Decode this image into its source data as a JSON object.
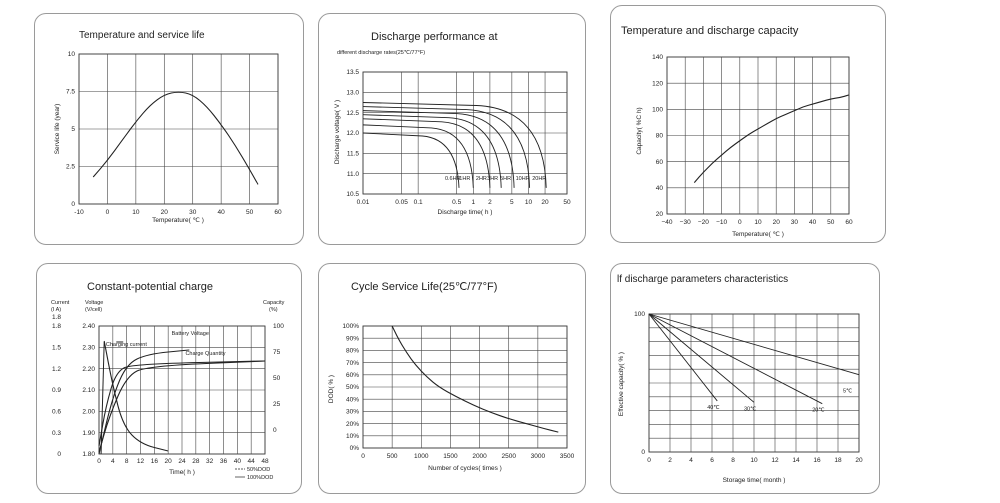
{
  "chart_data": [
    {
      "id": "p1",
      "type": "line",
      "title": "Temperature and service life",
      "xlabel": "Temperature( ℃ )",
      "ylabel": "Service life (year)",
      "xlim": [
        -10,
        60
      ],
      "ylim": [
        0,
        10
      ],
      "xticks": [
        -10,
        0,
        10,
        20,
        30,
        40,
        50,
        60
      ],
      "yticks": [
        0,
        2.5,
        5,
        7.5,
        10
      ],
      "xtick_labels": [
        "-10",
        "0",
        "10",
        "20",
        "30",
        "40",
        "50",
        "60"
      ],
      "ytick_labels": [
        "0",
        "2.5",
        "5",
        "7.5",
        "10"
      ],
      "grid": true,
      "series": [
        {
          "x": [
            -5,
            0,
            5,
            10,
            15,
            20,
            25,
            30,
            35,
            40,
            45,
            50,
            53
          ],
          "y": [
            1.8,
            2.9,
            4.2,
            5.5,
            6.6,
            7.3,
            7.5,
            7.3,
            6.5,
            5.3,
            3.9,
            2.3,
            1.3
          ]
        }
      ]
    },
    {
      "id": "p2",
      "type": "line",
      "title": "Discharge performance at",
      "subtitle": "different discharge rates(25℃/77°F)",
      "xlabel": "Discharge time( h )",
      "ylabel": "Discharge voltage( V )",
      "xscale": "log",
      "xlim": [
        0.01,
        50
      ],
      "ylim": [
        10.5,
        13.5
      ],
      "xticks": [
        0.01,
        0.05,
        0.1,
        0.5,
        1,
        2,
        5,
        10,
        20,
        50
      ],
      "yticks": [
        10.5,
        11.0,
        11.5,
        12.0,
        12.5,
        13.0,
        13.5
      ],
      "xtick_labels": [
        "0.01",
        "0.05",
        "0.1",
        "0.5",
        "1",
        "2",
        "5",
        "10",
        "20",
        "50"
      ],
      "ytick_labels": [
        "10.5",
        "11.0",
        "11.5",
        "12.0",
        "12.5",
        "13.0",
        "13.5"
      ],
      "grid": true,
      "series": [
        {
          "name": "0.6HR",
          "start": 12.0,
          "end_t": 0.55,
          "label": "0.6HR"
        },
        {
          "name": "1HR",
          "start": 12.2,
          "end_t": 1.0,
          "label": "1HR"
        },
        {
          "name": "2HR",
          "start": 12.35,
          "end_t": 2.0,
          "label": "2HR"
        },
        {
          "name": "3HR",
          "start": 12.45,
          "end_t": 3.2,
          "label": "3HR"
        },
        {
          "name": "5HR",
          "start": 12.55,
          "end_t": 5.5,
          "label": "5HR"
        },
        {
          "name": "10HR",
          "start": 12.65,
          "end_t": 10.5,
          "label": "10HR"
        },
        {
          "name": "20HR",
          "start": 12.75,
          "end_t": 21.0,
          "label": "20HR"
        }
      ]
    },
    {
      "id": "p3",
      "type": "line",
      "title": "Temperature and discharge capacity",
      "xlabel": "Temperature( ℃ )",
      "ylabel": "Capacity( %C  h)",
      "xlim": [
        -40,
        60
      ],
      "ylim": [
        20,
        140
      ],
      "xticks": [
        -40,
        -30,
        -20,
        -10,
        0,
        10,
        20,
        30,
        40,
        50,
        60
      ],
      "yticks": [
        20,
        40,
        60,
        80,
        100,
        120,
        140
      ],
      "xtick_labels": [
        "−40",
        "−30",
        "−20",
        "−10",
        "0",
        "10",
        "20",
        "30",
        "40",
        "50",
        "60"
      ],
      "ytick_labels": [
        "20",
        "40",
        "60",
        "80",
        "100",
        "120",
        "140"
      ],
      "grid": true,
      "series": [
        {
          "x": [
            -25,
            -20,
            -15,
            -10,
            -5,
            0,
            5,
            10,
            15,
            20,
            25,
            30,
            35,
            40,
            45,
            50,
            55,
            60
          ],
          "y": [
            44,
            52,
            59,
            65,
            71,
            76,
            81,
            85,
            89,
            93,
            96,
            99,
            102,
            104,
            106,
            108,
            109,
            111
          ]
        }
      ]
    },
    {
      "id": "p4",
      "type": "line",
      "title": "Constant-potential charge",
      "xlabel": "Time( h )",
      "ylabels": [
        "Current (I  A)",
        "Voltage (V/cell)",
        "Capacity (%)"
      ],
      "header_current": "Current",
      "header_current_unit": "(I  A)",
      "header_voltage": "Voltage",
      "header_voltage_unit": "(V/cell)",
      "header_capacity": "Capacity",
      "header_capacity_unit": "(%)",
      "xlim": [
        0,
        48
      ],
      "xticks": [
        0,
        4,
        8,
        12,
        16,
        20,
        24,
        28,
        32,
        36,
        40,
        44,
        48
      ],
      "xtick_labels": [
        "0",
        "4",
        "8",
        "12",
        "16",
        "20",
        "24",
        "28",
        "32",
        "36",
        "40",
        "44",
        "48"
      ],
      "current_ticks": [
        "1.8",
        "1.5",
        "1.2",
        "0.9",
        "0.6",
        "0.3",
        "0"
      ],
      "current_top_label": "1.8",
      "voltage_ticks": [
        "2.40",
        "2.30",
        "2.20",
        "2.10",
        "2.00",
        "1.90",
        "1.80"
      ],
      "capacity_ticks": [
        "100",
        "75",
        "50",
        "25",
        "0"
      ],
      "annotations": [
        "Battery Voltage",
        "Charging current",
        "Charge Quantity"
      ],
      "legend": [
        "50%DOD",
        "100%DOD"
      ],
      "grid": true
    },
    {
      "id": "p5",
      "type": "line",
      "title": "Cycle Service Life(25℃/77°F)",
      "xlabel": "Number of cycles( times )",
      "ylabel": "DOD( % )",
      "xlim": [
        0,
        3500
      ],
      "ylim": [
        0,
        100
      ],
      "xticks": [
        0,
        500,
        1000,
        1500,
        2000,
        2500,
        3000,
        3500
      ],
      "yticks": [
        0,
        10,
        20,
        30,
        40,
        50,
        60,
        70,
        80,
        90,
        100
      ],
      "xtick_labels": [
        "0",
        "500",
        "1000",
        "1500",
        "2000",
        "2500",
        "3000",
        "3500"
      ],
      "ytick_labels": [
        "0%",
        "10%",
        "20%",
        "30%",
        "40%",
        "50%",
        "60%",
        "70%",
        "80%",
        "90%",
        "100%"
      ],
      "grid": true,
      "series": [
        {
          "x": [
            500,
            600,
            750,
            900,
            1100,
            1300,
            1600,
            1900,
            2200,
            2500,
            2800,
            3100,
            3350
          ],
          "y": [
            100,
            90,
            78,
            68,
            58,
            50,
            42,
            35,
            29,
            24,
            20,
            16,
            13
          ]
        }
      ]
    },
    {
      "id": "p6",
      "type": "line",
      "title": "lf discharge parameters characteristics",
      "xlabel": "Storage time( month )",
      "ylabel": "Effective capacity( % )",
      "xlim": [
        0,
        20
      ],
      "ylim": [
        0,
        100
      ],
      "xticks": [
        0,
        2,
        4,
        6,
        8,
        10,
        12,
        14,
        16,
        18,
        20
      ],
      "yticks": [
        0,
        10,
        20,
        30,
        40,
        50,
        60,
        70,
        80,
        90,
        100
      ],
      "xtick_labels": [
        "0",
        "2",
        "4",
        "6",
        "8",
        "10",
        "12",
        "14",
        "16",
        "18",
        "20"
      ],
      "ytick_labels": [
        "0",
        "",
        "",
        "",
        "",
        "",
        "",
        "",
        "",
        "",
        "100"
      ],
      "grid": true,
      "series": [
        {
          "name": "5℃",
          "x": [
            0,
            20
          ],
          "y": [
            100,
            56
          ],
          "label": "5℃"
        },
        {
          "name": "20℃",
          "x": [
            0,
            16.5
          ],
          "y": [
            100,
            35
          ],
          "label": "20℃"
        },
        {
          "name": "30℃",
          "x": [
            0,
            10
          ],
          "y": [
            100,
            36
          ],
          "label": "30℃"
        },
        {
          "name": "40℃",
          "x": [
            0,
            6.5
          ],
          "y": [
            100,
            37
          ],
          "label": "40℃"
        }
      ]
    }
  ]
}
